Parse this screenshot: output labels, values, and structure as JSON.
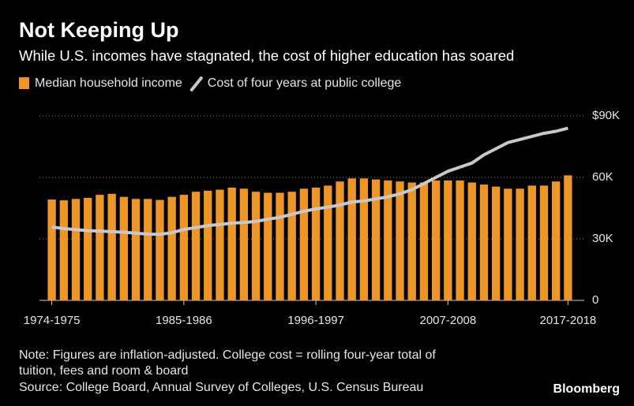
{
  "chart_data": {
    "type": "bar_line",
    "title": "Not Keeping Up",
    "subtitle": "While U.S. incomes have stagnated, the cost of higher education has soared",
    "categories": [
      "1974-1975",
      null,
      null,
      null,
      null,
      null,
      null,
      null,
      null,
      null,
      null,
      "1985-1986",
      null,
      null,
      null,
      null,
      null,
      null,
      null,
      null,
      null,
      null,
      "1996-1997",
      null,
      null,
      null,
      null,
      null,
      null,
      null,
      null,
      null,
      null,
      "2007-2008",
      null,
      null,
      null,
      null,
      null,
      null,
      null,
      null,
      null,
      "2017-2018"
    ],
    "series": [
      {
        "name": "Median household income",
        "type": "bar",
        "color": "#ee9528",
        "values": [
          49200,
          48800,
          49500,
          50000,
          51500,
          52000,
          50500,
          49500,
          49500,
          49000,
          50500,
          51500,
          53000,
          53500,
          54000,
          55000,
          54500,
          53000,
          52500,
          52500,
          53000,
          54500,
          55000,
          56000,
          58000,
          59500,
          59500,
          59000,
          58500,
          58000,
          57500,
          57500,
          58500,
          58500,
          58500,
          57500,
          56500,
          55500,
          54500,
          54500,
          56000,
          56000,
          58000,
          61000
        ]
      },
      {
        "name": "Cost of four years at public college",
        "type": "line",
        "color": "#c8c8c8",
        "values": [
          35800,
          35000,
          34500,
          34000,
          33800,
          33500,
          33200,
          32800,
          32300,
          32200,
          33000,
          34600,
          35500,
          36500,
          37000,
          37700,
          38000,
          38500,
          39600,
          40500,
          42000,
          43500,
          44600,
          45500,
          46500,
          48000,
          48500,
          49500,
          50500,
          52000,
          54000,
          57000,
          60000,
          63000,
          65000,
          67000,
          71000,
          74000,
          77000,
          78500,
          80000,
          81500,
          82500,
          84000
        ]
      }
    ],
    "ylim": [
      0,
      90000
    ],
    "yticks": [
      0,
      {
        "value": 30000,
        "label": "30K"
      },
      {
        "value": 60000,
        "label": "60K"
      },
      {
        "value": 90000,
        "label": "$90K"
      }
    ],
    "grid": true,
    "note": "Note: Figures are inflation-adjusted. College cost = rolling four-year total of",
    "note2": "tuition, fees and room & board",
    "source": "Source: College Board, Annual Survey of Colleges, U.S. Census Bureau",
    "brand": "Bloomberg"
  }
}
